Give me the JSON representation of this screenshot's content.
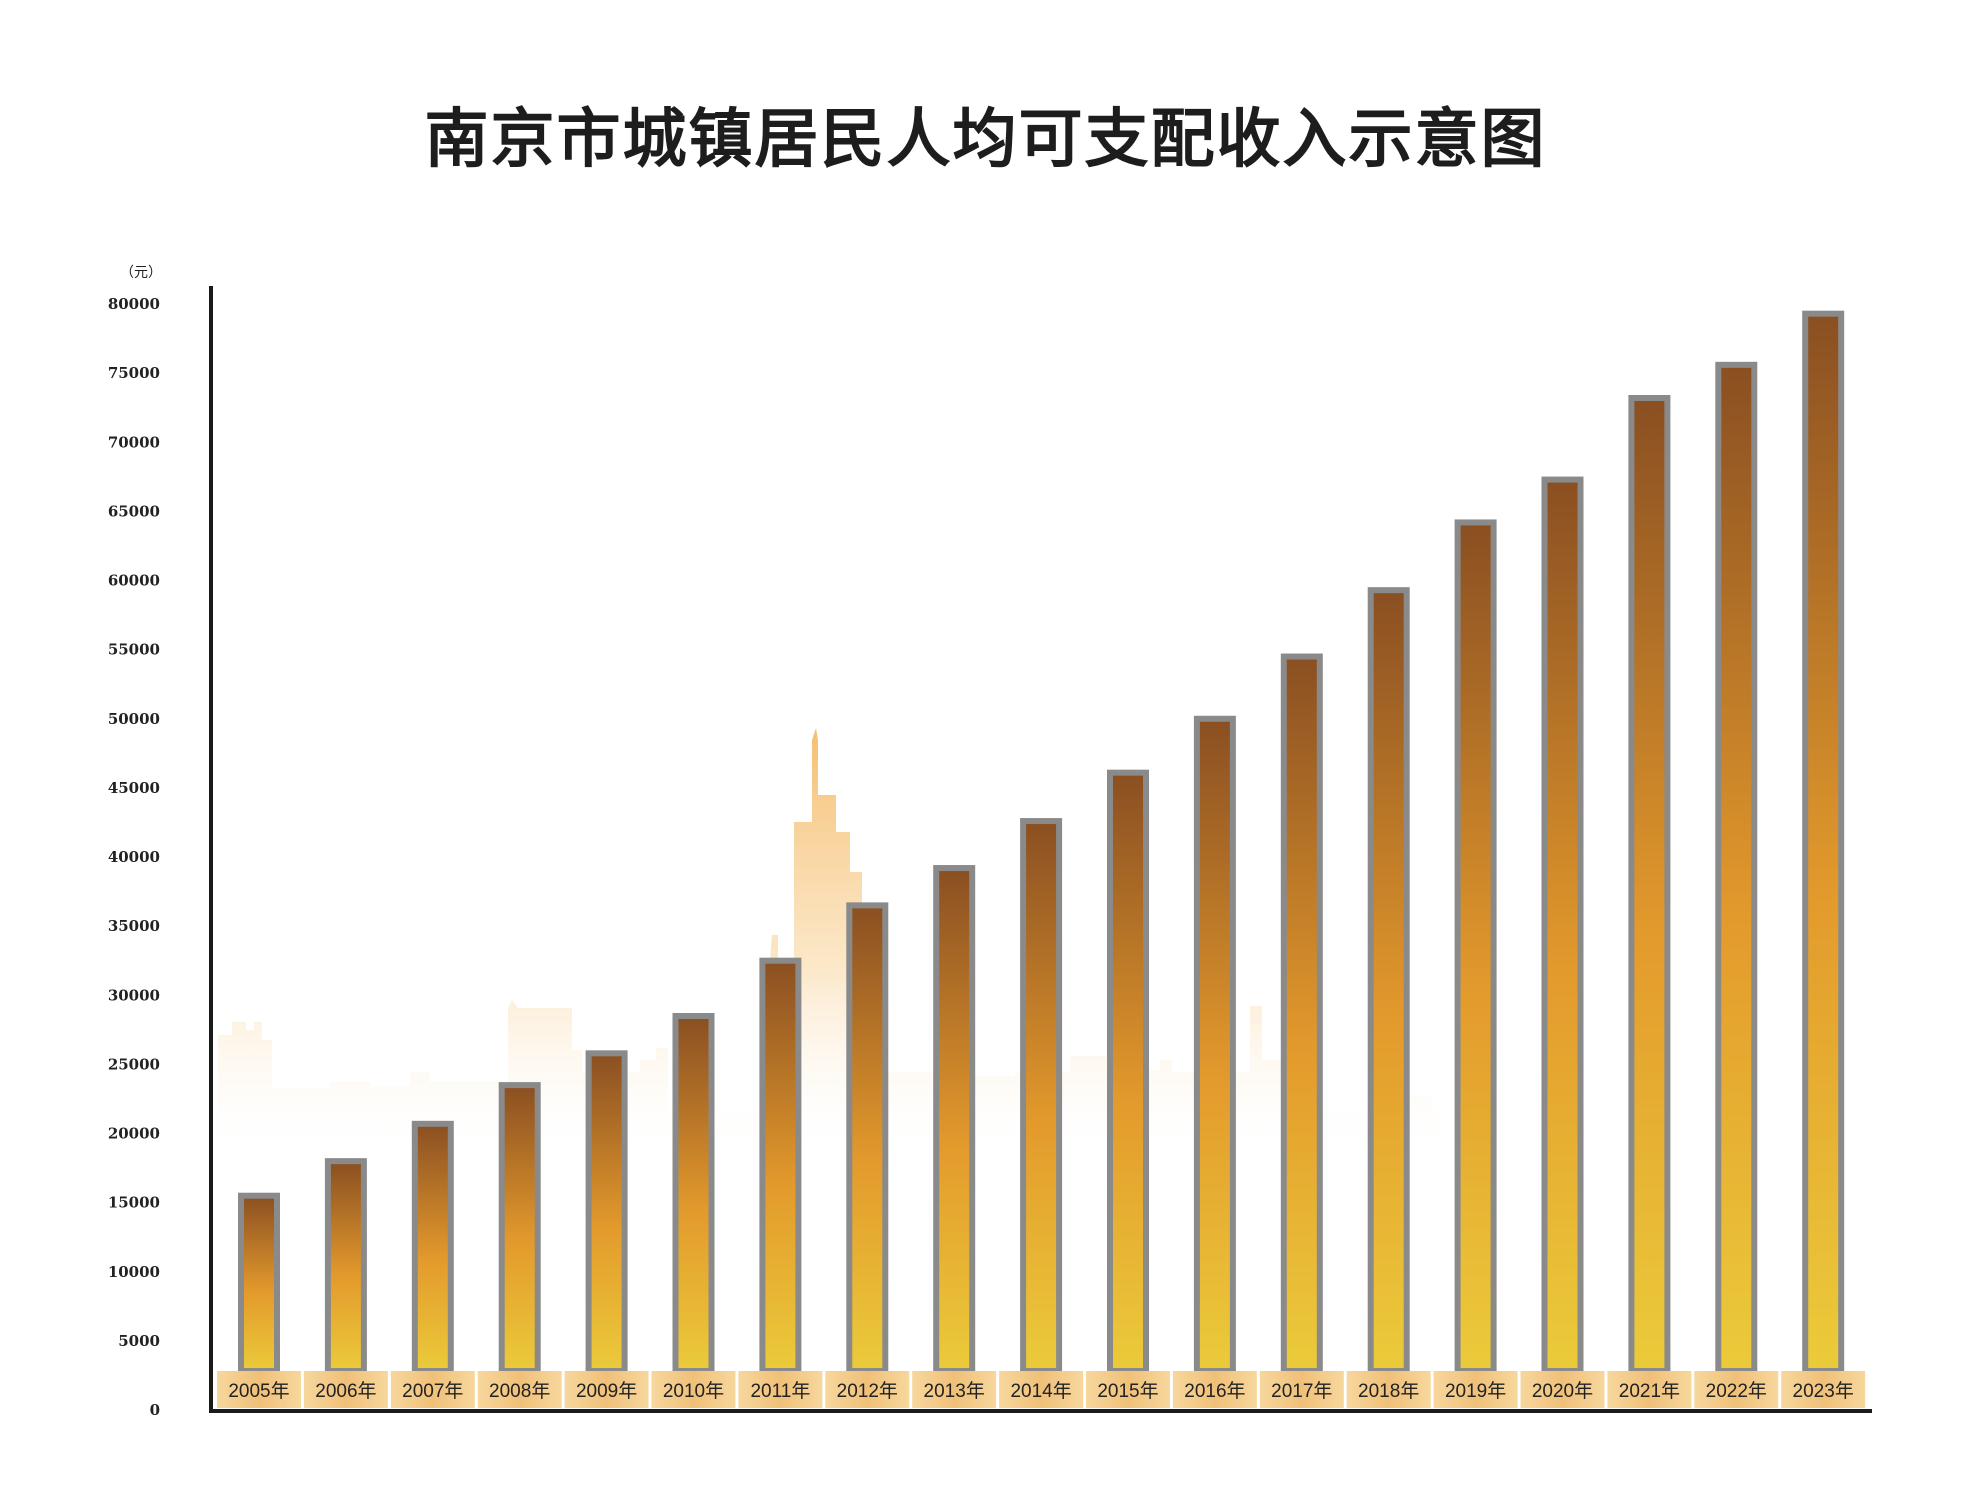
{
  "chart_data": {
    "type": "bar",
    "title": "南京市城镇居民人均可支配收入示意图",
    "unit": "（元）",
    "ylim": [
      0,
      80000
    ],
    "yticks": [
      0,
      5000,
      10000,
      15000,
      20000,
      25000,
      30000,
      35000,
      40000,
      45000,
      50000,
      55000,
      60000,
      65000,
      70000,
      75000,
      80000
    ],
    "categories": [
      "2005年",
      "2006年",
      "2007年",
      "2008年",
      "2009年",
      "2010年",
      "2011年",
      "2012年",
      "2013年",
      "2014年",
      "2015年",
      "2016年",
      "2017年",
      "2018年",
      "2019年",
      "2020年",
      "2021年",
      "2022年",
      "2023年"
    ],
    "values": [
      15500,
      18000,
      20700,
      23500,
      25800,
      28500,
      32500,
      36500,
      39200,
      42600,
      46100,
      50000,
      54500,
      59300,
      64200,
      67300,
      73200,
      75600,
      79300
    ],
    "grid": false,
    "legend": "none",
    "colors": {
      "bar_top": "#8a4f22",
      "bar_mid": "#e39a2c",
      "bar_bottom": "#ebcb3a",
      "bar_border": "#8a8a8a",
      "label_band": "#f3c880",
      "skyline": "#f4b45a",
      "axis": "#1a1a1a"
    }
  }
}
